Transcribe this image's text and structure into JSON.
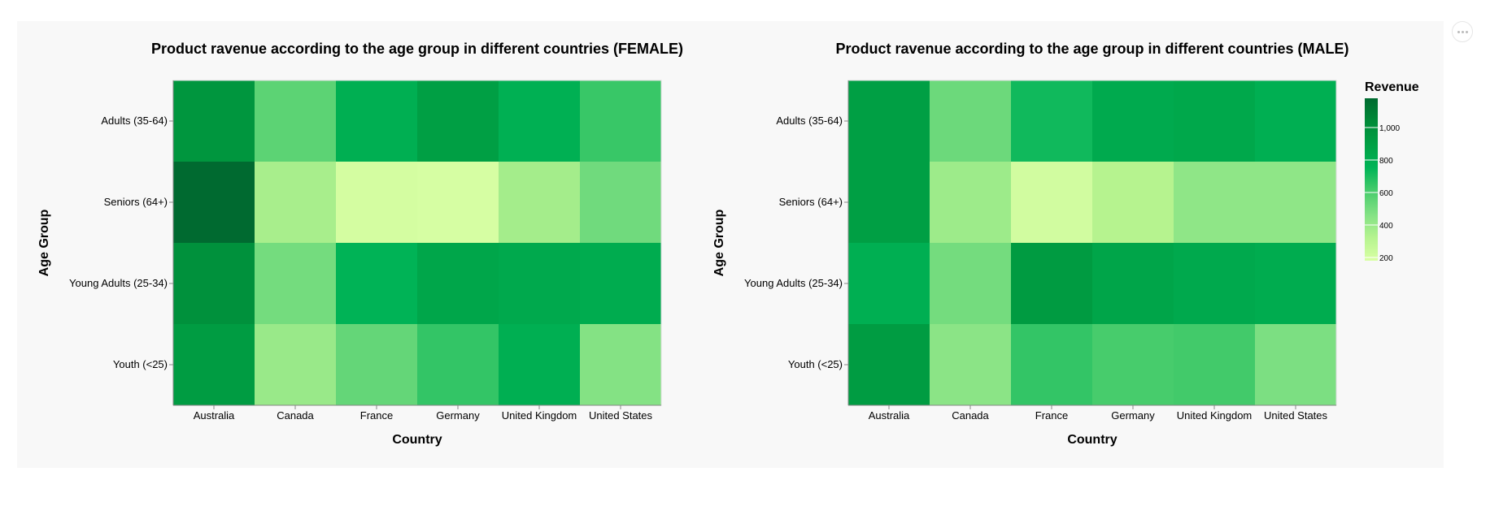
{
  "legend": {
    "title": "Revenue",
    "domain": [
      180,
      1180
    ],
    "ticks": [
      200,
      400,
      600,
      800,
      1000
    ],
    "tick_labels": [
      "200",
      "400",
      "600",
      "800",
      "1,000"
    ],
    "color_stops": [
      "#d9ffa4",
      "#b5f38f",
      "#82e184",
      "#48cc6c",
      "#00b457",
      "#00a044",
      "#008a38",
      "#006a30"
    ]
  },
  "chart_data": [
    {
      "type": "heatmap",
      "title": "Product ravenue according to the age group in different countries (FEMALE)",
      "xlabel": "Country",
      "ylabel": "Age Group",
      "x": [
        "Australia",
        "Canada",
        "France",
        "Germany",
        "United Kingdom",
        "United States"
      ],
      "y": [
        "Adults (35-64)",
        "Seniors (64+)",
        "Young Adults (25-34)",
        "Youth (<25)"
      ],
      "values": [
        [
          960,
          560,
          790,
          900,
          780,
          640
        ],
        [
          1180,
          360,
          200,
          190,
          370,
          510
        ],
        [
          990,
          500,
          760,
          850,
          830,
          810
        ],
        [
          920,
          400,
          540,
          650,
          790,
          460
        ]
      ]
    },
    {
      "type": "heatmap",
      "title": "Product ravenue according to the age group in different countries (MALE)",
      "xlabel": "Country",
      "ylabel": "Age Group",
      "x": [
        "Australia",
        "Canada",
        "France",
        "Germany",
        "United Kingdom",
        "United States"
      ],
      "y": [
        "Adults (35-64)",
        "Seniors (64+)",
        "Young Adults (25-34)",
        "Youth (<25)"
      ],
      "values": [
        [
          900,
          520,
          720,
          820,
          840,
          790
        ],
        [
          900,
          390,
          210,
          320,
          430,
          430
        ],
        [
          790,
          500,
          930,
          860,
          830,
          810
        ],
        [
          920,
          440,
          650,
          610,
          620,
          480
        ]
      ]
    }
  ]
}
